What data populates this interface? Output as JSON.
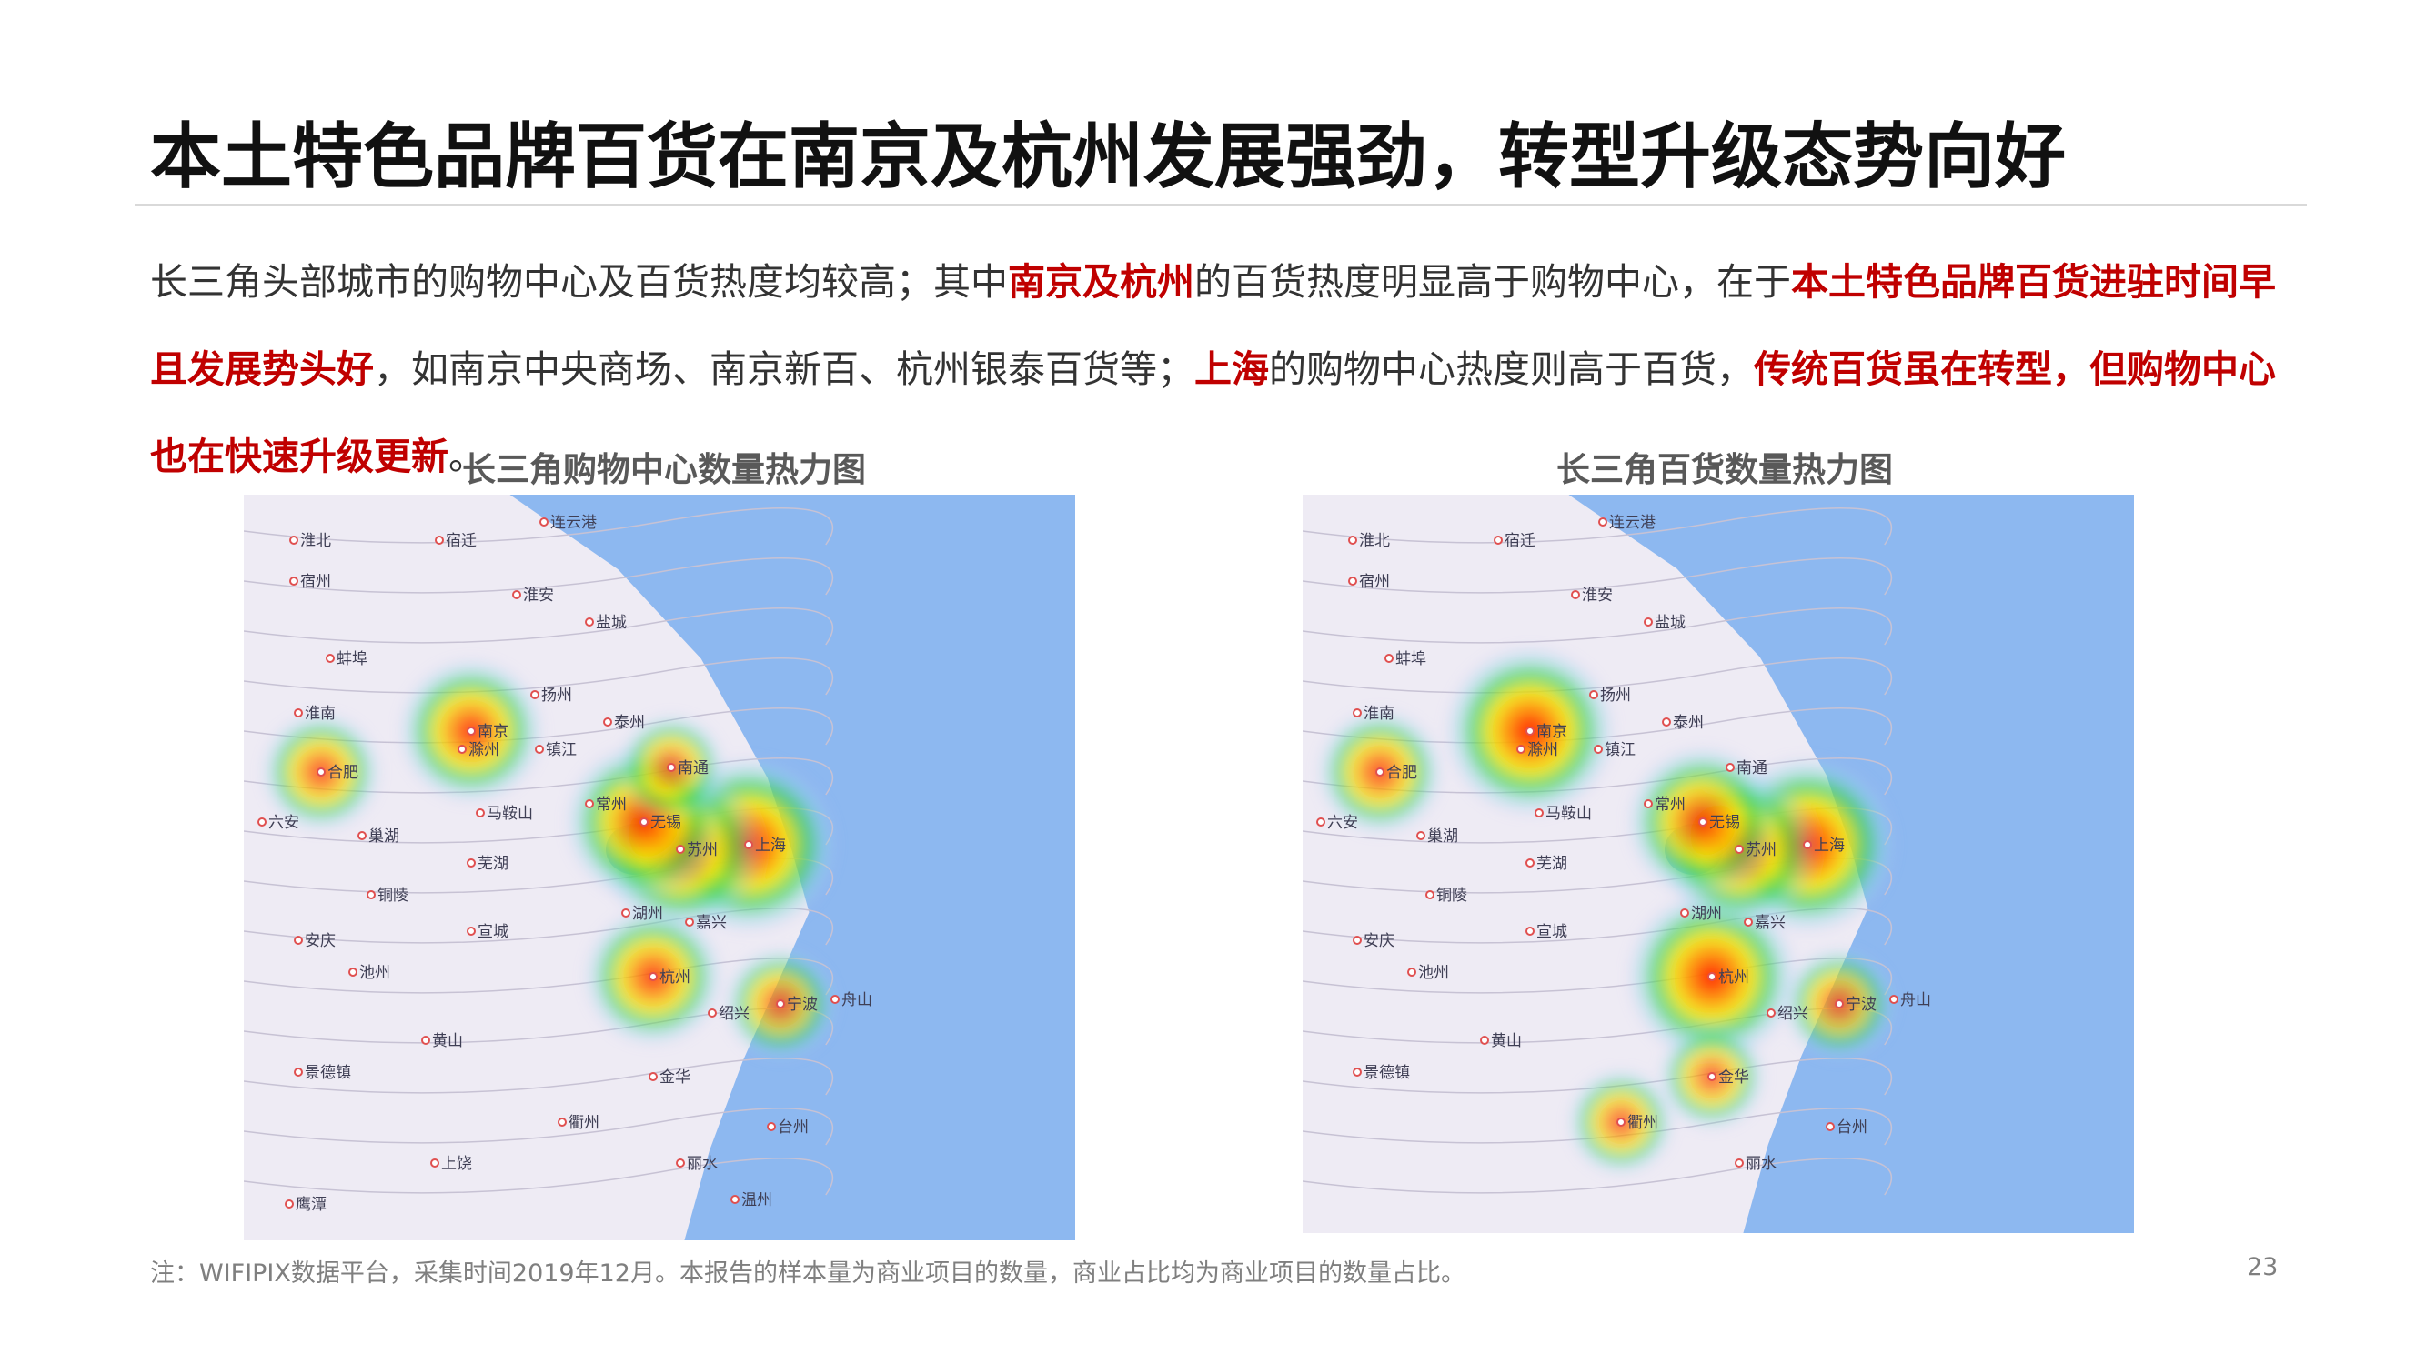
{
  "slide": {
    "title": "本土特色品牌百货在南京及杭州发展强劲，转型升级态势向好",
    "body_segments": [
      {
        "text": "长三角头部城市的购物中心及百货热度均较高；其中",
        "highlight": false
      },
      {
        "text": "南京及杭州",
        "highlight": true
      },
      {
        "text": "的百货热度明显高于购物中心，在于",
        "highlight": false
      },
      {
        "text": "本土特色品牌百货进驻时间早且发展势头好",
        "highlight": true
      },
      {
        "text": "，如南京中央商场、南京新百、杭州银泰百货等；",
        "highlight": false
      },
      {
        "text": "上海",
        "highlight": true
      },
      {
        "text": "的购物中心热度则高于百货，",
        "highlight": false
      },
      {
        "text": "传统百货虽在转型，但购物中心也在快速升级更新",
        "highlight": true
      },
      {
        "text": "。",
        "highlight": false
      }
    ],
    "footnote": "注：WIFIPIX数据平台，采集时间2019年12月。本报告的样本量为商业项目的数量，商业占比均为商业项目的数量占比。",
    "page_number": "23"
  },
  "maps": {
    "left": {
      "title": "长三角购物中心数量热力图",
      "cities": [
        "淮北",
        "宿州",
        "宿迁",
        "连云港",
        "淮安",
        "盐城",
        "蚌埠",
        "淮南",
        "扬州",
        "泰州",
        "滁州",
        "南京",
        "镇江",
        "南通",
        "合肥",
        "马鞍山",
        "常州",
        "无锡",
        "苏州",
        "上海",
        "巢湖",
        "芜湖",
        "六安",
        "铜陵",
        "宣城",
        "湖州",
        "嘉兴",
        "安庆",
        "池州",
        "杭州",
        "绍兴",
        "宁波",
        "舟山",
        "黄山",
        "金华",
        "景德镇",
        "衢州",
        "台州",
        "上饶",
        "丽水",
        "温州",
        "鹰潭"
      ],
      "hotspots": [
        {
          "name": "上海",
          "intensity": 1.0
        },
        {
          "name": "苏州",
          "intensity": 0.9
        },
        {
          "name": "无锡",
          "intensity": 0.85
        },
        {
          "name": "南京",
          "intensity": 0.75
        },
        {
          "name": "杭州",
          "intensity": 0.7
        },
        {
          "name": "合肥",
          "intensity": 0.55
        },
        {
          "name": "宁波",
          "intensity": 0.5
        },
        {
          "name": "南通",
          "intensity": 0.45
        }
      ]
    },
    "right": {
      "title": "长三角百货数量热力图",
      "cities": [
        "淮北",
        "宿州",
        "宿迁",
        "连云港",
        "淮安",
        "盐城",
        "蚌埠",
        "淮南",
        "扬州",
        "泰州",
        "滁州",
        "南京",
        "镇江",
        "南通",
        "合肥",
        "马鞍山",
        "常州",
        "无锡",
        "苏州",
        "上海",
        "巢湖",
        "芜湖",
        "六安",
        "铜陵",
        "宣城",
        "湖州",
        "嘉兴",
        "安庆",
        "池州",
        "杭州",
        "绍兴",
        "宁波",
        "舟山",
        "黄山",
        "金华",
        "景德镇",
        "衢州",
        "台州",
        "丽水"
      ],
      "hotspots": [
        {
          "name": "上海",
          "intensity": 1.0
        },
        {
          "name": "南京",
          "intensity": 0.95
        },
        {
          "name": "杭州",
          "intensity": 0.95
        },
        {
          "name": "苏州",
          "intensity": 0.85
        },
        {
          "name": "无锡",
          "intensity": 0.8
        },
        {
          "name": "合肥",
          "intensity": 0.6
        },
        {
          "name": "宁波",
          "intensity": 0.5
        },
        {
          "name": "衢州",
          "intensity": 0.45
        },
        {
          "name": "金华",
          "intensity": 0.45
        }
      ]
    }
  },
  "colors": {
    "highlight": "#c00000",
    "sea": "#8db8f0"
  }
}
